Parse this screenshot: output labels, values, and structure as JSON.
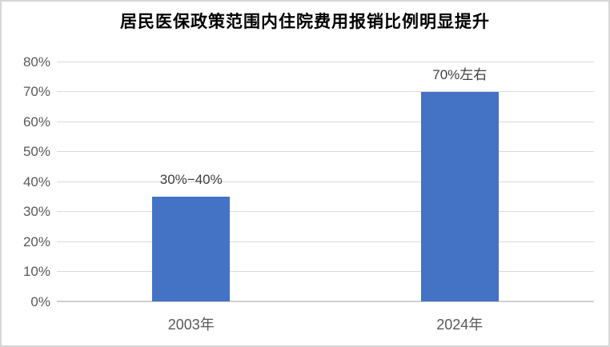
{
  "chart_data": {
    "type": "bar",
    "title": "居民医保政策范围内住院费用报销比例明显提升",
    "categories": [
      "2003年",
      "2024年"
    ],
    "values": [
      35,
      70
    ],
    "data_labels": [
      "30%−40%",
      "70%左右"
    ],
    "xlabel": "",
    "ylabel": "",
    "ylim": [
      0,
      80
    ],
    "ytick_step": 10,
    "ytick_labels": [
      "0%",
      "10%",
      "20%",
      "30%",
      "40%",
      "50%",
      "60%",
      "70%",
      "80%"
    ],
    "grid": "horizontal gridlines on",
    "legend": "none",
    "bar_color": "#4472C4",
    "gridline_color": "#d9d9d9",
    "axis_label_color": "#595959",
    "title_color": "#000000"
  }
}
